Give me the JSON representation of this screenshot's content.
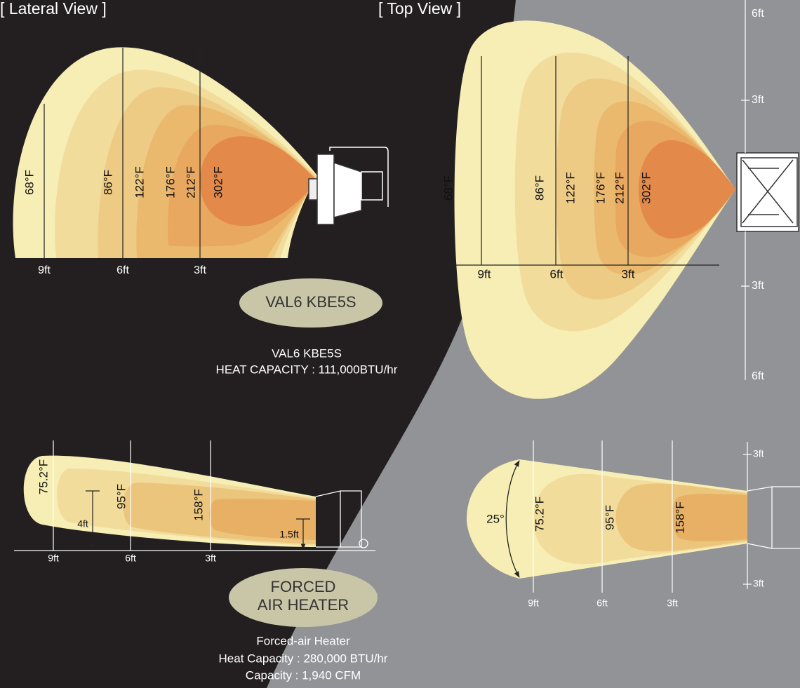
{
  "lateral_view_title": "[ Lateral View ]",
  "top_view_title": "[ Top View ]",
  "val6": {
    "lateral": {
      "temperatures": [
        "68°F",
        "86°F",
        "122°F",
        "176°F",
        "212°F",
        "302°F"
      ],
      "distances": [
        "9ft",
        "6ft",
        "3ft"
      ]
    },
    "top": {
      "temperatures": [
        "68°F",
        "86°F",
        "122°F",
        "176°F",
        "212°F",
        "302°F"
      ],
      "distances": [
        "9ft",
        "6ft",
        "3ft"
      ],
      "scale": [
        "6ft",
        "3ft",
        "3ft",
        "6ft"
      ]
    },
    "badge": "VAL6 KBE5S",
    "caption": [
      "VAL6 KBE5S",
      "HEAT CAPACITY : 111,000BTU/hr"
    ]
  },
  "forced_air": {
    "lateral": {
      "temperatures": [
        "75.2°F",
        "95°F",
        "158°F"
      ],
      "heights": [
        "4ft",
        "1.5ft"
      ],
      "distances": [
        "9ft",
        "6ft",
        "3ft"
      ]
    },
    "top": {
      "angle": "25°",
      "temperatures": [
        "75.2°F",
        "95°F",
        "158°F"
      ],
      "distances": [
        "9ft",
        "6ft",
        "3ft"
      ],
      "scale": [
        "3ft",
        "3ft"
      ]
    },
    "badge": [
      "FORCED",
      "AIR HEATER"
    ],
    "caption": [
      "Forced-air Heater",
      "Heat Capacity : 280,000 BTU/hr",
      "Capacity : 1,940 CFM"
    ]
  }
}
